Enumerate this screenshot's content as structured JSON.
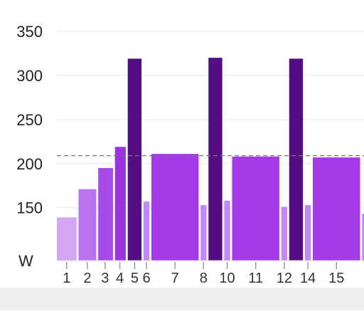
{
  "chart_data": {
    "type": "bar",
    "title": "",
    "xlabel": "",
    "ylabel": "W",
    "ylim": [
      90,
      350
    ],
    "yticks": [
      150,
      200,
      250,
      300,
      350
    ],
    "grid": true,
    "threshold": 209,
    "colors": {
      "grid": "#e6e6e6",
      "axis": "#9a9a9a",
      "threshold": "#777777",
      "text": "#222222",
      "tick_text": "#333333"
    },
    "bars": [
      {
        "x0": 0.0,
        "x1": 1.0,
        "value": 139,
        "color": "#d3a5f3"
      },
      {
        "x0": 1.1,
        "x1": 2.0,
        "value": 171,
        "color": "#bb72ee"
      },
      {
        "x0": 2.1,
        "x1": 2.85,
        "value": 195,
        "color": "#a84ae8"
      },
      {
        "x0": 2.95,
        "x1": 3.5,
        "value": 219,
        "color": "#9b33e3"
      },
      {
        "x0": 3.6,
        "x1": 4.3,
        "value": 319,
        "color": "#550d84"
      },
      {
        "x0": 4.4,
        "x1": 4.7,
        "value": 157,
        "color": "#c588f0"
      },
      {
        "x0": 4.8,
        "x1": 7.2,
        "value": 211,
        "color": "#a43ae6"
      },
      {
        "x0": 7.3,
        "x1": 7.6,
        "value": 153,
        "color": "#c588f0"
      },
      {
        "x0": 7.7,
        "x1": 8.4,
        "value": 320,
        "color": "#550d84"
      },
      {
        "x0": 8.5,
        "x1": 8.8,
        "value": 158,
        "color": "#c588f0"
      },
      {
        "x0": 8.9,
        "x1": 11.3,
        "value": 208,
        "color": "#a43ae6"
      },
      {
        "x0": 11.4,
        "x1": 11.7,
        "value": 151,
        "color": "#c588f0"
      },
      {
        "x0": 11.8,
        "x1": 12.5,
        "value": 319,
        "color": "#550d84"
      },
      {
        "x0": 12.6,
        "x1": 12.9,
        "value": 153,
        "color": "#c588f0"
      },
      {
        "x0": 13.0,
        "x1": 15.4,
        "value": 207,
        "color": "#a43ae6"
      },
      {
        "x0": 15.5,
        "x1": 16.5,
        "value": 143,
        "color": "#c588f0"
      }
    ],
    "x_ticks": [
      {
        "pos": 0.5,
        "label": "1"
      },
      {
        "pos": 1.55,
        "label": "2"
      },
      {
        "pos": 2.45,
        "label": "3"
      },
      {
        "pos": 3.2,
        "label": "4"
      },
      {
        "pos": 3.95,
        "label": "5"
      },
      {
        "pos": 4.55,
        "label": "6"
      },
      {
        "pos": 6.0,
        "label": "7"
      },
      {
        "pos": 7.45,
        "label": "8"
      },
      {
        "pos": 8.65,
        "label": "10"
      },
      {
        "pos": 10.1,
        "label": "11"
      },
      {
        "pos": 11.55,
        "label": "12"
      },
      {
        "pos": 12.75,
        "label": "14"
      },
      {
        "pos": 14.2,
        "label": "15"
      },
      {
        "pos": 16.0,
        "label": ""
      }
    ]
  }
}
